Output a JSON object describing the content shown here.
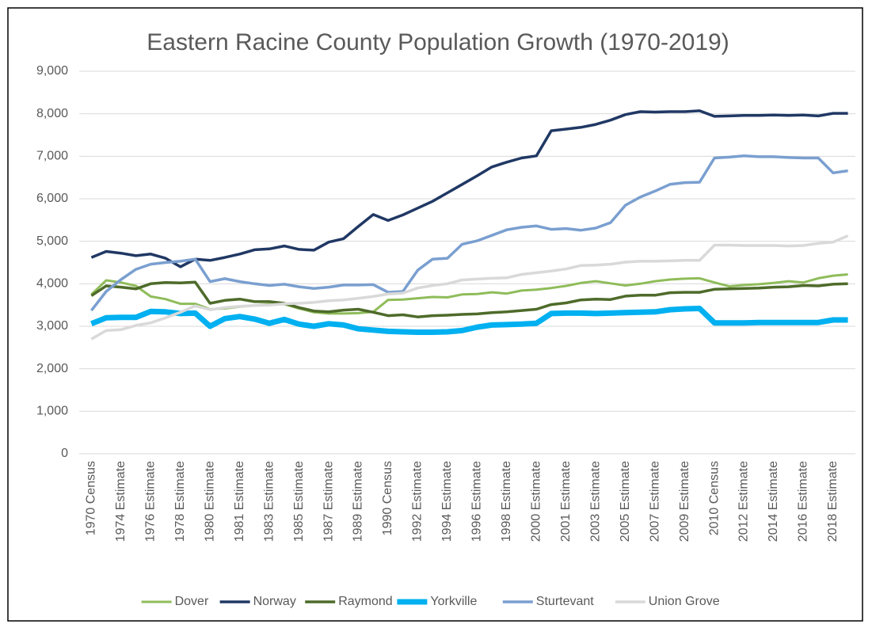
{
  "chart_data": {
    "type": "line",
    "title": "Eastern Racine County Population Growth (1970-2019)",
    "categories": [
      "1970 Census",
      null,
      "1974 Estimate",
      null,
      "1976 Estimate",
      null,
      "1978 Estimate",
      null,
      "1980 Estimate",
      null,
      "1981 Estimate",
      null,
      "1983 Estimate",
      null,
      "1985 Estimate",
      null,
      "1987 Estimate",
      null,
      "1989 Estimate",
      null,
      "1990 Census",
      null,
      "1992 Estimate",
      null,
      "1994 Estimate",
      null,
      "1996 Estimate",
      null,
      "1998 Estimate",
      null,
      "2000 Estimate",
      null,
      "2001 Estimate",
      null,
      "2003 Estimate",
      null,
      "2005 Estimate",
      null,
      "2007 Estimate",
      null,
      "2009 Estimate",
      null,
      "2010 Census",
      null,
      "2012 Estimate",
      null,
      "2014 Estimate",
      null,
      "2016 Estimate",
      null,
      "2018 Estimate",
      null
    ],
    "series": [
      {
        "name": "Dover",
        "color": "#8fbc5a",
        "line_width": 3,
        "values": [
          3750,
          4080,
          4030,
          3950,
          3700,
          3640,
          3530,
          3530,
          3400,
          3420,
          3460,
          3490,
          3520,
          3520,
          3420,
          3330,
          3300,
          3300,
          3310,
          3340,
          3620,
          3630,
          3660,
          3690,
          3680,
          3750,
          3760,
          3800,
          3770,
          3840,
          3860,
          3900,
          3950,
          4020,
          4060,
          4010,
          3960,
          4000,
          4060,
          4100,
          4120,
          4130,
          4030,
          3940,
          3970,
          3990,
          4020,
          4060,
          4030,
          4130,
          4190,
          4220
        ]
      },
      {
        "name": "Norway",
        "color": "#203864",
        "line_width": 3.5,
        "values": [
          4620,
          4760,
          4720,
          4660,
          4700,
          4600,
          4400,
          4580,
          4550,
          4620,
          4700,
          4800,
          4820,
          4890,
          4810,
          4790,
          4980,
          5060,
          5350,
          5630,
          5490,
          5620,
          5780,
          5940,
          6140,
          6340,
          6540,
          6750,
          6860,
          6960,
          7010,
          7600,
          7640,
          7680,
          7750,
          7850,
          7980,
          8050,
          8040,
          8050,
          8050,
          8070,
          7940,
          7950,
          7960,
          7960,
          7970,
          7960,
          7970,
          7950,
          8010,
          8010
        ]
      },
      {
        "name": "Raymond",
        "color": "#4e6b2a",
        "line_width": 3.5,
        "values": [
          3720,
          3950,
          3920,
          3880,
          4000,
          4030,
          4020,
          4040,
          3540,
          3610,
          3640,
          3580,
          3580,
          3540,
          3440,
          3360,
          3340,
          3380,
          3400,
          3330,
          3250,
          3270,
          3220,
          3250,
          3260,
          3280,
          3290,
          3320,
          3340,
          3370,
          3400,
          3510,
          3550,
          3620,
          3640,
          3630,
          3710,
          3730,
          3730,
          3790,
          3800,
          3800,
          3870,
          3880,
          3890,
          3900,
          3920,
          3930,
          3960,
          3950,
          3990,
          4000
        ]
      },
      {
        "name": "Yorkville",
        "color": "#00b0f0",
        "line_width": 7,
        "values": [
          3060,
          3200,
          3210,
          3210,
          3350,
          3340,
          3300,
          3310,
          3000,
          3180,
          3230,
          3170,
          3070,
          3160,
          3050,
          3000,
          3060,
          3030,
          2940,
          2910,
          2880,
          2870,
          2860,
          2860,
          2870,
          2900,
          2980,
          3030,
          3040,
          3050,
          3070,
          3300,
          3310,
          3310,
          3300,
          3310,
          3320,
          3330,
          3340,
          3390,
          3410,
          3420,
          3080,
          3080,
          3080,
          3090,
          3090,
          3090,
          3090,
          3090,
          3150,
          3150
        ]
      },
      {
        "name": "Sturtevant",
        "color": "#7a9fd0",
        "line_width": 3.5,
        "values": [
          3370,
          3820,
          4100,
          4340,
          4460,
          4500,
          4530,
          4580,
          4050,
          4120,
          4050,
          4000,
          3960,
          3990,
          3930,
          3890,
          3920,
          3970,
          3970,
          3980,
          3800,
          3820,
          4320,
          4580,
          4600,
          4930,
          5010,
          5140,
          5270,
          5330,
          5360,
          5280,
          5300,
          5260,
          5310,
          5440,
          5850,
          6040,
          6180,
          6340,
          6380,
          6390,
          6960,
          6980,
          7010,
          6990,
          6990,
          6970,
          6960,
          6960,
          6610,
          6660
        ]
      },
      {
        "name": "Union Grove",
        "color": "#d9d9d9",
        "line_width": 3.5,
        "values": [
          2700,
          2900,
          2920,
          3020,
          3080,
          3200,
          3330,
          3480,
          3390,
          3440,
          3470,
          3490,
          3500,
          3530,
          3540,
          3560,
          3600,
          3620,
          3660,
          3700,
          3760,
          3780,
          3900,
          3960,
          4000,
          4090,
          4110,
          4130,
          4140,
          4220,
          4260,
          4300,
          4350,
          4430,
          4440,
          4460,
          4510,
          4530,
          4530,
          4540,
          4550,
          4550,
          4910,
          4910,
          4900,
          4900,
          4900,
          4890,
          4900,
          4950,
          4980,
          5130
        ]
      }
    ],
    "ylim": [
      0,
      9000
    ],
    "yticks": [
      0,
      {
        "value": 1000,
        "label": "1,000"
      },
      {
        "value": 2000,
        "label": "2,000"
      },
      {
        "value": 3000,
        "label": "3,000"
      },
      {
        "value": 4000,
        "label": "4,000"
      },
      {
        "value": 5000,
        "label": "5,000"
      },
      {
        "value": 6000,
        "label": "6,000"
      },
      {
        "value": 7000,
        "label": "7,000"
      },
      {
        "value": 8000,
        "label": "8,000"
      },
      {
        "value": 9000,
        "label": "9,000"
      }
    ],
    "grid": true,
    "legend": "bottom"
  }
}
